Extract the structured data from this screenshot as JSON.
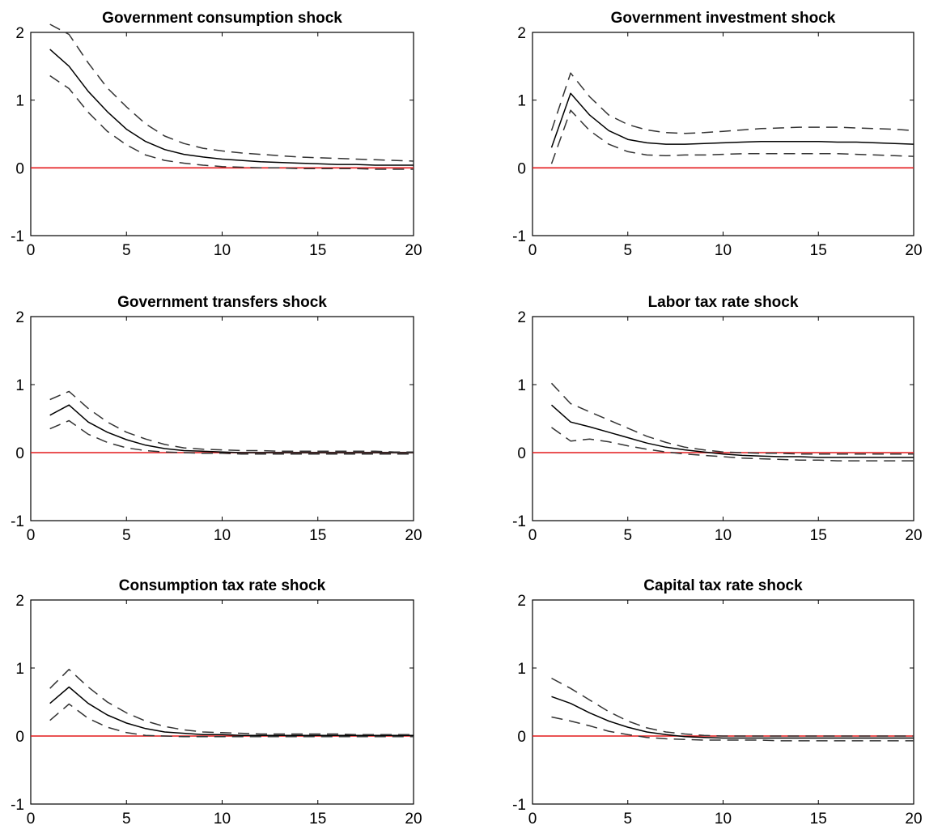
{
  "colors": {
    "zero_line": "#e41a1c",
    "median": "#000000",
    "bands": "#333333",
    "axes": "#000000"
  },
  "chart_data": [
    {
      "type": "line",
      "title": "Government consumption shock",
      "xlim": [
        0,
        20
      ],
      "ylim": [
        -1,
        2
      ],
      "xticks": [
        "0",
        "5",
        "10",
        "15",
        "20"
      ],
      "yticks": [
        "-1",
        "0",
        "1",
        "2"
      ],
      "x": [
        1,
        2,
        3,
        4,
        5,
        6,
        7,
        8,
        9,
        10,
        11,
        12,
        13,
        14,
        15,
        16,
        17,
        18,
        19,
        20
      ],
      "series": [
        {
          "values": [
            1.75,
            1.5,
            1.13,
            0.83,
            0.57,
            0.39,
            0.27,
            0.2,
            0.16,
            0.13,
            0.11,
            0.09,
            0.08,
            0.07,
            0.06,
            0.05,
            0.05,
            0.04,
            0.04,
            0.04
          ]
        },
        {
          "values": [
            2.12,
            1.97,
            1.55,
            1.18,
            0.9,
            0.65,
            0.47,
            0.36,
            0.29,
            0.25,
            0.22,
            0.2,
            0.18,
            0.16,
            0.15,
            0.14,
            0.13,
            0.12,
            0.11,
            0.1
          ]
        },
        {
          "values": [
            1.36,
            1.17,
            0.82,
            0.54,
            0.34,
            0.19,
            0.11,
            0.07,
            0.04,
            0.02,
            0.01,
            0.0,
            0.0,
            -0.01,
            -0.01,
            -0.01,
            -0.01,
            -0.02,
            -0.02,
            -0.02
          ]
        }
      ]
    },
    {
      "type": "line",
      "title": "Government investment shock",
      "xlim": [
        0,
        20
      ],
      "ylim": [
        -1,
        2
      ],
      "xticks": [
        "0",
        "5",
        "10",
        "15",
        "20"
      ],
      "yticks": [
        "-1",
        "0",
        "1",
        "2"
      ],
      "x": [
        1,
        2,
        3,
        4,
        5,
        6,
        7,
        8,
        9,
        10,
        11,
        12,
        13,
        14,
        15,
        16,
        17,
        18,
        19,
        20
      ],
      "series": [
        {
          "values": [
            0.3,
            1.1,
            0.78,
            0.55,
            0.42,
            0.37,
            0.35,
            0.35,
            0.36,
            0.37,
            0.38,
            0.39,
            0.39,
            0.39,
            0.39,
            0.38,
            0.38,
            0.37,
            0.36,
            0.35
          ]
        },
        {
          "values": [
            0.55,
            1.4,
            1.05,
            0.78,
            0.64,
            0.56,
            0.52,
            0.51,
            0.52,
            0.54,
            0.56,
            0.58,
            0.59,
            0.6,
            0.6,
            0.6,
            0.59,
            0.58,
            0.57,
            0.55
          ]
        },
        {
          "values": [
            0.06,
            0.85,
            0.55,
            0.35,
            0.24,
            0.19,
            0.18,
            0.19,
            0.19,
            0.2,
            0.21,
            0.21,
            0.21,
            0.21,
            0.21,
            0.21,
            0.2,
            0.19,
            0.18,
            0.17
          ]
        }
      ]
    },
    {
      "type": "line",
      "title": "Government transfers shock",
      "xlim": [
        0,
        20
      ],
      "ylim": [
        -1,
        2
      ],
      "xticks": [
        "0",
        "5",
        "10",
        "15",
        "20"
      ],
      "yticks": [
        "-1",
        "0",
        "1",
        "2"
      ],
      "x": [
        1,
        2,
        3,
        4,
        5,
        6,
        7,
        8,
        9,
        10,
        11,
        12,
        13,
        14,
        15,
        16,
        17,
        18,
        19,
        20
      ],
      "series": [
        {
          "values": [
            0.55,
            0.7,
            0.45,
            0.3,
            0.19,
            0.11,
            0.06,
            0.03,
            0.02,
            0.01,
            0.0,
            0.0,
            0.0,
            0.0,
            0.0,
            0.0,
            0.0,
            0.0,
            0.0,
            0.0
          ]
        },
        {
          "values": [
            0.78,
            0.9,
            0.65,
            0.45,
            0.3,
            0.2,
            0.12,
            0.07,
            0.05,
            0.04,
            0.03,
            0.03,
            0.02,
            0.02,
            0.02,
            0.02,
            0.02,
            0.02,
            0.01,
            0.01
          ]
        },
        {
          "values": [
            0.35,
            0.47,
            0.27,
            0.15,
            0.07,
            0.03,
            0.01,
            0.0,
            -0.01,
            -0.01,
            -0.02,
            -0.02,
            -0.02,
            -0.02,
            -0.02,
            -0.02,
            -0.02,
            -0.02,
            -0.02,
            -0.02
          ]
        }
      ]
    },
    {
      "type": "line",
      "title": "Labor tax rate shock",
      "xlim": [
        0,
        20
      ],
      "ylim": [
        -1,
        2
      ],
      "xticks": [
        "0",
        "5",
        "10",
        "15",
        "20"
      ],
      "yticks": [
        "-1",
        "0",
        "1",
        "2"
      ],
      "x": [
        1,
        2,
        3,
        4,
        5,
        6,
        7,
        8,
        9,
        10,
        11,
        12,
        13,
        14,
        15,
        16,
        17,
        18,
        19,
        20
      ],
      "series": [
        {
          "values": [
            0.7,
            0.45,
            0.38,
            0.3,
            0.22,
            0.14,
            0.08,
            0.04,
            0.01,
            -0.02,
            -0.04,
            -0.05,
            -0.06,
            -0.06,
            -0.07,
            -0.07,
            -0.07,
            -0.07,
            -0.07,
            -0.07
          ]
        },
        {
          "values": [
            1.02,
            0.72,
            0.6,
            0.48,
            0.36,
            0.24,
            0.15,
            0.08,
            0.04,
            0.01,
            0.0,
            -0.01,
            -0.01,
            -0.02,
            -0.02,
            -0.02,
            -0.02,
            -0.02,
            -0.02,
            -0.02
          ]
        },
        {
          "values": [
            0.37,
            0.17,
            0.2,
            0.16,
            0.1,
            0.05,
            0.01,
            -0.02,
            -0.04,
            -0.06,
            -0.08,
            -0.09,
            -0.1,
            -0.11,
            -0.11,
            -0.12,
            -0.12,
            -0.12,
            -0.12,
            -0.12
          ]
        }
      ]
    },
    {
      "type": "line",
      "title": "Consumption tax rate shock",
      "xlim": [
        0,
        20
      ],
      "ylim": [
        -1,
        2
      ],
      "xticks": [
        "0",
        "5",
        "10",
        "15",
        "20"
      ],
      "yticks": [
        "-1",
        "0",
        "1",
        "2"
      ],
      "x": [
        1,
        2,
        3,
        4,
        5,
        6,
        7,
        8,
        9,
        10,
        11,
        12,
        13,
        14,
        15,
        16,
        17,
        18,
        19,
        20
      ],
      "series": [
        {
          "values": [
            0.48,
            0.72,
            0.48,
            0.31,
            0.19,
            0.11,
            0.06,
            0.04,
            0.02,
            0.02,
            0.01,
            0.01,
            0.01,
            0.01,
            0.01,
            0.01,
            0.01,
            0.01,
            0.01,
            0.01
          ]
        },
        {
          "values": [
            0.7,
            0.98,
            0.72,
            0.5,
            0.34,
            0.22,
            0.14,
            0.09,
            0.06,
            0.05,
            0.04,
            0.03,
            0.03,
            0.03,
            0.03,
            0.03,
            0.02,
            0.02,
            0.02,
            0.02
          ]
        },
        {
          "values": [
            0.23,
            0.47,
            0.26,
            0.13,
            0.05,
            0.01,
            0.0,
            -0.01,
            -0.01,
            -0.01,
            -0.01,
            -0.01,
            -0.01,
            -0.01,
            -0.01,
            -0.01,
            -0.01,
            -0.01,
            -0.01,
            -0.01
          ]
        }
      ]
    },
    {
      "type": "line",
      "title": "Capital tax rate shock",
      "xlim": [
        0,
        20
      ],
      "ylim": [
        -1,
        2
      ],
      "xticks": [
        "0",
        "5",
        "10",
        "15",
        "20"
      ],
      "yticks": [
        "-1",
        "0",
        "1",
        "2"
      ],
      "x": [
        1,
        2,
        3,
        4,
        5,
        6,
        7,
        8,
        9,
        10,
        11,
        12,
        13,
        14,
        15,
        16,
        17,
        18,
        19,
        20
      ],
      "series": [
        {
          "values": [
            0.58,
            0.48,
            0.34,
            0.22,
            0.13,
            0.06,
            0.02,
            -0.01,
            -0.02,
            -0.03,
            -0.03,
            -0.03,
            -0.03,
            -0.03,
            -0.03,
            -0.03,
            -0.03,
            -0.03,
            -0.03,
            -0.03
          ]
        },
        {
          "values": [
            0.85,
            0.7,
            0.53,
            0.36,
            0.22,
            0.12,
            0.06,
            0.03,
            0.01,
            0.0,
            0.0,
            0.0,
            0.0,
            0.0,
            0.0,
            0.0,
            0.0,
            0.0,
            0.0,
            0.0
          ]
        },
        {
          "values": [
            0.28,
            0.22,
            0.15,
            0.07,
            0.02,
            -0.02,
            -0.04,
            -0.05,
            -0.06,
            -0.06,
            -0.06,
            -0.06,
            -0.07,
            -0.07,
            -0.07,
            -0.07,
            -0.07,
            -0.07,
            -0.07,
            -0.07
          ]
        }
      ]
    }
  ]
}
